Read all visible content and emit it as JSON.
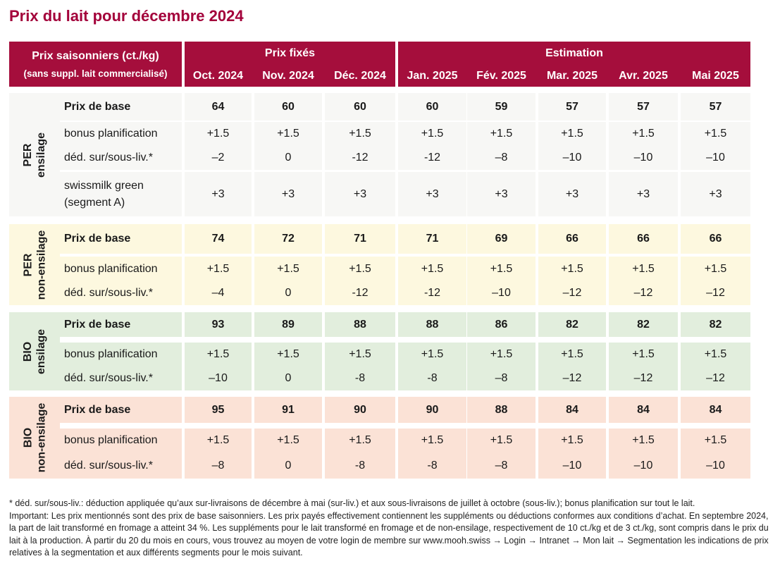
{
  "title": "Prix du lait pour décembre 2024",
  "header": {
    "corner_title": "Prix saisonniers (ct./kg)",
    "corner_sub": "(sans suppl. lait commercialisé)",
    "group_fixed": "Prix fixés",
    "group_estimate": "Estimation",
    "months": [
      "Oct. 2024",
      "Nov. 2024",
      "Déc. 2024",
      "Jan. 2025",
      "Fév. 2025",
      "Mar. 2025",
      "Avr. 2025",
      "Mai 2025"
    ]
  },
  "colors": {
    "header": "#a50e3c",
    "title": "#a3003a",
    "per_ensilage": "#f7f7f5",
    "per_non_ensilage": "#fdf8df",
    "bio_ensilage": "#e2eedd",
    "bio_non_ensilage": "#fbe2d6"
  },
  "groups": [
    {
      "name": "PER ensilage",
      "rows": [
        {
          "label": "Prix de base",
          "bold": true,
          "values": [
            "64",
            "60",
            "60",
            "60",
            "59",
            "57",
            "57",
            "57"
          ]
        },
        {
          "label": "bonus planification",
          "bold": false,
          "values": [
            "+1.5",
            "+1.5",
            "+1.5",
            "+1.5",
            "+1.5",
            "+1.5",
            "+1.5",
            "+1.5"
          ]
        },
        {
          "label": "déd. sur/sous-liv.*",
          "bold": false,
          "values": [
            "–2",
            "0",
            "-12",
            "-12",
            "–8",
            "–10",
            "–10",
            "–10"
          ]
        },
        {
          "label": "swissmilk green (segment A)",
          "bold": false,
          "values": [
            "+3",
            "+3",
            "+3",
            "+3",
            "+3",
            "+3",
            "+3",
            "+3"
          ]
        }
      ]
    },
    {
      "name": "PER non-ensilage",
      "rows": [
        {
          "label": "Prix de base",
          "bold": true,
          "values": [
            "74",
            "72",
            "71",
            "71",
            "69",
            "66",
            "66",
            "66"
          ]
        },
        {
          "label": "bonus planification",
          "bold": false,
          "values": [
            "+1.5",
            "+1.5",
            "+1.5",
            "+1.5",
            "+1.5",
            "+1.5",
            "+1.5",
            "+1.5"
          ]
        },
        {
          "label": "déd. sur/sous-liv.*",
          "bold": false,
          "values": [
            "–4",
            "0",
            "-12",
            "-12",
            "–10",
            "–12",
            "–12",
            "–12"
          ]
        }
      ]
    },
    {
      "name": "BIO ensilage",
      "rows": [
        {
          "label": "Prix de base",
          "bold": true,
          "values": [
            "93",
            "89",
            "88",
            "88",
            "86",
            "82",
            "82",
            "82"
          ]
        },
        {
          "label": "bonus planification",
          "bold": false,
          "values": [
            "+1.5",
            "+1.5",
            "+1.5",
            "+1.5",
            "+1.5",
            "+1.5",
            "+1.5",
            "+1.5"
          ]
        },
        {
          "label": "déd. sur/sous-liv.*",
          "bold": false,
          "values": [
            "–10",
            "0",
            "-8",
            "-8",
            "–8",
            "–12",
            "–12",
            "–12"
          ]
        }
      ]
    },
    {
      "name": "BIO non-ensilage",
      "rows": [
        {
          "label": "Prix de base",
          "bold": true,
          "values": [
            "95",
            "91",
            "90",
            "90",
            "88",
            "84",
            "84",
            "84"
          ]
        },
        {
          "label": "bonus planification",
          "bold": false,
          "values": [
            "+1.5",
            "+1.5",
            "+1.5",
            "+1.5",
            "+1.5",
            "+1.5",
            "+1.5",
            "+1.5"
          ]
        },
        {
          "label": "déd. sur/sous-liv.*",
          "bold": false,
          "values": [
            "–8",
            "0",
            "-8",
            "-8",
            "–8",
            "–10",
            "–10",
            "–10"
          ]
        }
      ]
    }
  ],
  "footnote": [
    "* déd. sur/sous-liv.: déduction appliquée qu’aux sur-livraisons de décembre à mai (sur-liv.) et aux sous-livraisons de juillet à octobre (sous-liv.); bonus planification sur tout le lait.",
    "Important: Les prix mentionnés sont des prix de base saisonniers. Les prix payés effectivement contiennent les suppléments ou déductions conformes aux conditions d’achat. En septembre 2024, la part de lait transformé en fromage a atteint 34 %. Les suppléments pour le lait transformé en fromage et de non-ensilage, respectivement de 10 ct./kg et de 3 ct./kg, sont compris dans le prix du lait à la production. À partir du 20 du mois en cours, vous trouvez au moyen de votre login de membre sur www.mooh.swiss → Login → Intranet → Mon lait → Segmentation les indications de prix relatives à la segmentation et aux différents segments pour le mois suivant."
  ]
}
